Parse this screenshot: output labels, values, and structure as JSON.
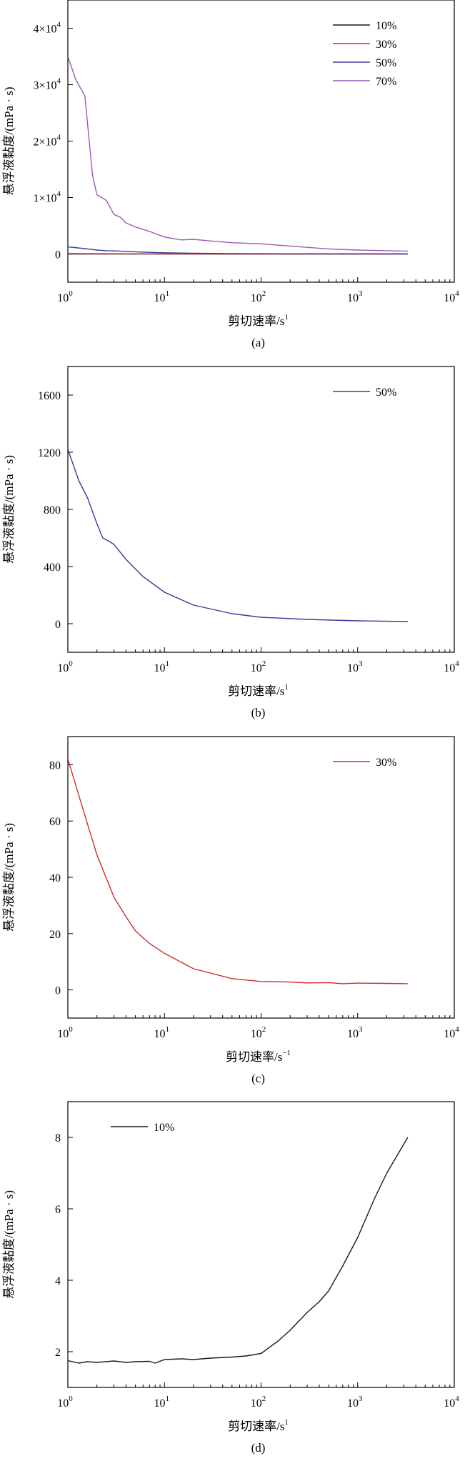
{
  "chart_data": [
    {
      "type": "line",
      "panel": "(a)",
      "x_scale": "log",
      "xlim": [
        1,
        10000
      ],
      "ylim": [
        -5000,
        45000
      ],
      "xlabel": "剪切速率/s",
      "xlabel_sup": "1",
      "ylabel": "悬浮液黏度/(mPa · s)",
      "x_ticks": [
        {
          "value": 1,
          "base": "10",
          "exp": "0"
        },
        {
          "value": 10,
          "base": "10",
          "exp": "1"
        },
        {
          "value": 100,
          "base": "10",
          "exp": "2"
        },
        {
          "value": 1000,
          "base": "10",
          "exp": "3"
        },
        {
          "value": 10000,
          "base": "10",
          "exp": "4"
        }
      ],
      "y_ticks": [
        {
          "value": 0,
          "label": "0",
          "exp": ""
        },
        {
          "value": 10000,
          "label": "1×10",
          "exp": "4"
        },
        {
          "value": 20000,
          "label": "2×10",
          "exp": "4"
        },
        {
          "value": 30000,
          "label": "3×10",
          "exp": "4"
        },
        {
          "value": 40000,
          "label": "4×10",
          "exp": "4"
        }
      ],
      "legend_position": "top-right",
      "series": [
        {
          "name": "10%",
          "color": "#1a1a1a",
          "x": [
            1,
            2,
            3,
            5,
            10,
            20,
            50,
            100,
            300,
            1000,
            3300
          ],
          "y": [
            1.7,
            1.7,
            1.7,
            1.7,
            1.8,
            1.8,
            1.8,
            1.9,
            3.1,
            5.2,
            8.0
          ]
        },
        {
          "name": "30%",
          "color": "#d12b2b",
          "x": [
            1,
            2,
            3,
            5,
            10,
            20,
            50,
            100,
            300,
            1000,
            3300
          ],
          "y": [
            82,
            55,
            38,
            22,
            14,
            8,
            4,
            3,
            2.5,
            2.2,
            2.0
          ]
        },
        {
          "name": "50%",
          "color": "#3a3a9e",
          "x": [
            1,
            1.5,
            2,
            2.5,
            3,
            4,
            6,
            10,
            20,
            50,
            100,
            300,
            1000,
            3300
          ],
          "y": [
            1250,
            950,
            700,
            580,
            560,
            450,
            330,
            220,
            130,
            70,
            45,
            30,
            20,
            15
          ]
        },
        {
          "name": "70%",
          "color": "#9b59b6",
          "x": [
            1,
            1.2,
            1.5,
            1.8,
            2,
            2.5,
            3,
            3.5,
            4,
            5,
            7,
            10,
            15,
            20,
            30,
            50,
            100,
            200,
            500,
            1000,
            3300
          ],
          "y": [
            35000,
            31000,
            28000,
            14000,
            10500,
            9500,
            7000,
            6500,
            5500,
            4800,
            4000,
            3000,
            2500,
            2600,
            2300,
            2000,
            1800,
            1400,
            900,
            700,
            500
          ]
        }
      ]
    },
    {
      "type": "line",
      "panel": "(b)",
      "x_scale": "log",
      "xlim": [
        1,
        10000
      ],
      "ylim": [
        -200,
        1800
      ],
      "xlabel": "剪切速率/s",
      "xlabel_sup": "1",
      "ylabel": "悬浮液黏度/(mPa · s)",
      "x_ticks": [
        {
          "value": 1,
          "base": "10",
          "exp": "0"
        },
        {
          "value": 10,
          "base": "10",
          "exp": "1"
        },
        {
          "value": 100,
          "base": "10",
          "exp": "2"
        },
        {
          "value": 1000,
          "base": "10",
          "exp": "3"
        },
        {
          "value": 10000,
          "base": "10",
          "exp": "4"
        }
      ],
      "y_ticks": [
        {
          "value": 0,
          "label": "0",
          "exp": ""
        },
        {
          "value": 400,
          "label": "400",
          "exp": ""
        },
        {
          "value": 800,
          "label": "800",
          "exp": ""
        },
        {
          "value": 1200,
          "label": "1200",
          "exp": ""
        },
        {
          "value": 1600,
          "label": "1600",
          "exp": ""
        }
      ],
      "legend_position": "top-right",
      "series": [
        {
          "name": "50%",
          "color": "#3a3a9e",
          "x": [
            1,
            1.3,
            1.6,
            2,
            2.3,
            2.7,
            3,
            4,
            6,
            10,
            20,
            50,
            100,
            300,
            1000,
            3300
          ],
          "y": [
            1220,
            1000,
            880,
            700,
            600,
            575,
            555,
            450,
            330,
            220,
            130,
            70,
            45,
            30,
            20,
            15
          ]
        }
      ]
    },
    {
      "type": "line",
      "panel": "(c)",
      "x_scale": "log",
      "xlim": [
        1,
        10000
      ],
      "ylim": [
        -10,
        90
      ],
      "xlabel": "剪切速率/s",
      "xlabel_sup": "−1",
      "ylabel": "悬浮液黏度/(mPa · s)",
      "x_ticks": [
        {
          "value": 1,
          "base": "10",
          "exp": "0"
        },
        {
          "value": 10,
          "base": "10",
          "exp": "1"
        },
        {
          "value": 100,
          "base": "10",
          "exp": "2"
        },
        {
          "value": 1000,
          "base": "10",
          "exp": "3"
        },
        {
          "value": 10000,
          "base": "10",
          "exp": "4"
        }
      ],
      "y_ticks": [
        {
          "value": 0,
          "label": "0",
          "exp": ""
        },
        {
          "value": 20,
          "label": "20",
          "exp": ""
        },
        {
          "value": 40,
          "label": "40",
          "exp": ""
        },
        {
          "value": 60,
          "label": "60",
          "exp": ""
        },
        {
          "value": 80,
          "label": "80",
          "exp": ""
        }
      ],
      "legend_position": "top-right",
      "series": [
        {
          "name": "30%",
          "color": "#d12b2b",
          "x": [
            1,
            1.5,
            2,
            3,
            4,
            5,
            7,
            10,
            20,
            50,
            100,
            200,
            300,
            500,
            700,
            1000,
            2000,
            3300
          ],
          "y": [
            82,
            62,
            48,
            33,
            26,
            21,
            16.5,
            13,
            7.5,
            4,
            3,
            2.8,
            2.5,
            2.6,
            2.2,
            2.4,
            2.3,
            2.2
          ]
        }
      ]
    },
    {
      "type": "line",
      "panel": "(d)",
      "x_scale": "log",
      "xlim": [
        1,
        10000
      ],
      "ylim": [
        1,
        9
      ],
      "xlabel": "剪切速率/s",
      "xlabel_sup": "1",
      "ylabel": "悬浮液黏度/(mPa · s)",
      "x_ticks": [
        {
          "value": 1,
          "base": "10",
          "exp": "0"
        },
        {
          "value": 10,
          "base": "10",
          "exp": "1"
        },
        {
          "value": 100,
          "base": "10",
          "exp": "2"
        },
        {
          "value": 1000,
          "base": "10",
          "exp": "3"
        },
        {
          "value": 10000,
          "base": "10",
          "exp": "4"
        }
      ],
      "y_ticks": [
        {
          "value": 2,
          "label": "2",
          "exp": ""
        },
        {
          "value": 4,
          "label": "4",
          "exp": ""
        },
        {
          "value": 6,
          "label": "6",
          "exp": ""
        },
        {
          "value": 8,
          "label": "8",
          "exp": ""
        }
      ],
      "legend_position": "top-left",
      "series": [
        {
          "name": "10%",
          "color": "#1a1a1a",
          "x": [
            1,
            1.3,
            1.6,
            2,
            3,
            4,
            5,
            7,
            8,
            10,
            15,
            20,
            30,
            50,
            70,
            100,
            150,
            200,
            300,
            400,
            500,
            700,
            1000,
            1500,
            2000,
            3300
          ],
          "y": [
            1.75,
            1.68,
            1.72,
            1.7,
            1.74,
            1.7,
            1.72,
            1.73,
            1.68,
            1.78,
            1.8,
            1.78,
            1.82,
            1.85,
            1.88,
            1.95,
            2.3,
            2.6,
            3.1,
            3.4,
            3.7,
            4.4,
            5.2,
            6.3,
            7.0,
            8.0
          ]
        }
      ]
    }
  ],
  "captions": [
    "(a)",
    "(b)",
    "(c)",
    "(d)"
  ]
}
